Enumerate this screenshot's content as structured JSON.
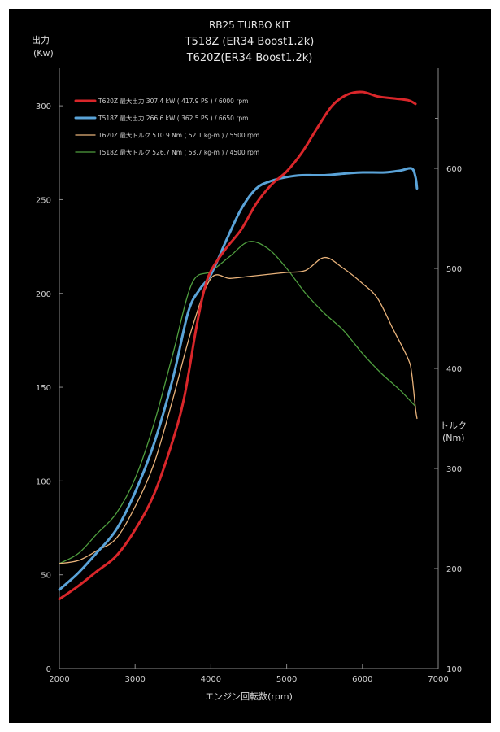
{
  "chart_data": {
    "type": "line",
    "title": [
      "RB25 TURBO KIT",
      "T518Z (ER34 Boost1.2k)",
      "T620Z(ER34 Boost1.2k)"
    ],
    "xlabel": "エンジン回転数(rpm)",
    "ylabel_left": [
      "出力",
      "(Kw)"
    ],
    "ylabel_right": [
      "トルク",
      "(Nm)"
    ],
    "xlim": [
      2000,
      7000
    ],
    "ylim_left": [
      0,
      320
    ],
    "ylim_right": [
      100,
      700
    ],
    "x_ticks": [
      2000,
      3000,
      4000,
      5000,
      6000,
      7000
    ],
    "y_ticks_left": [
      0,
      50,
      100,
      150,
      200,
      250,
      300
    ],
    "y_ticks_right": [
      100,
      200,
      300,
      400,
      500,
      600
    ],
    "grid": false,
    "legend_position": "top-left",
    "series": [
      {
        "name": "T620Z 最大出力 307.4 kW ( 417.9 PS ) / 6000 rpm",
        "axis": "left",
        "color": "#d9262a",
        "width": 3,
        "points": [
          [
            2000,
            37
          ],
          [
            2250,
            44
          ],
          [
            2500,
            52
          ],
          [
            2750,
            60
          ],
          [
            3000,
            74
          ],
          [
            3250,
            93
          ],
          [
            3500,
            122
          ],
          [
            3650,
            145
          ],
          [
            3800,
            180
          ],
          [
            3900,
            200
          ],
          [
            4000,
            212
          ],
          [
            4200,
            224
          ],
          [
            4400,
            234
          ],
          [
            4600,
            248
          ],
          [
            4800,
            258
          ],
          [
            5000,
            265
          ],
          [
            5200,
            275
          ],
          [
            5400,
            288
          ],
          [
            5600,
            300
          ],
          [
            5800,
            306
          ],
          [
            6000,
            307.4
          ],
          [
            6200,
            305
          ],
          [
            6400,
            304
          ],
          [
            6600,
            303
          ],
          [
            6700,
            301
          ]
        ]
      },
      {
        "name": "T518Z 最大出力 266.6 kW ( 362.5 PS ) / 6650 rpm",
        "axis": "left",
        "color": "#5aa3d8",
        "width": 3,
        "points": [
          [
            2000,
            42
          ],
          [
            2250,
            51
          ],
          [
            2500,
            62
          ],
          [
            2750,
            74
          ],
          [
            3000,
            94
          ],
          [
            3250,
            120
          ],
          [
            3500,
            155
          ],
          [
            3700,
            190
          ],
          [
            3850,
            202
          ],
          [
            4000,
            210
          ],
          [
            4200,
            228
          ],
          [
            4400,
            245
          ],
          [
            4600,
            256
          ],
          [
            4800,
            260
          ],
          [
            5000,
            262
          ],
          [
            5200,
            263
          ],
          [
            5500,
            263
          ],
          [
            5800,
            264
          ],
          [
            6000,
            264.5
          ],
          [
            6300,
            264.5
          ],
          [
            6500,
            265.5
          ],
          [
            6650,
            266.6
          ],
          [
            6700,
            262
          ],
          [
            6720,
            256
          ]
        ]
      },
      {
        "name": "T620Z 最大トルク 510.9 Nm ( 52.1 kg-m ) / 5500 rpm",
        "axis": "right",
        "color": "#e8b27a",
        "width": 1.3,
        "points": [
          [
            2000,
            205
          ],
          [
            2250,
            208
          ],
          [
            2500,
            218
          ],
          [
            2750,
            230
          ],
          [
            3000,
            262
          ],
          [
            3250,
            305
          ],
          [
            3500,
            370
          ],
          [
            3750,
            440
          ],
          [
            4000,
            490
          ],
          [
            4250,
            490
          ],
          [
            4500,
            492
          ],
          [
            4750,
            494
          ],
          [
            5000,
            496
          ],
          [
            5250,
            498
          ],
          [
            5500,
            510.9
          ],
          [
            5750,
            500
          ],
          [
            6000,
            485
          ],
          [
            6200,
            470
          ],
          [
            6400,
            440
          ],
          [
            6600,
            410
          ],
          [
            6650,
            395
          ],
          [
            6700,
            360
          ],
          [
            6720,
            350
          ]
        ]
      },
      {
        "name": "T518Z 最大トルク 526.7 Nm ( 53.7 kg-m ) / 4500 rpm",
        "axis": "right",
        "color": "#4f9e3f",
        "width": 1.3,
        "points": [
          [
            2000,
            205
          ],
          [
            2250,
            215
          ],
          [
            2500,
            235
          ],
          [
            2750,
            255
          ],
          [
            3000,
            290
          ],
          [
            3250,
            345
          ],
          [
            3500,
            415
          ],
          [
            3750,
            485
          ],
          [
            4000,
            497
          ],
          [
            4250,
            512
          ],
          [
            4500,
            526.7
          ],
          [
            4750,
            520
          ],
          [
            5000,
            500
          ],
          [
            5250,
            475
          ],
          [
            5500,
            455
          ],
          [
            5750,
            438
          ],
          [
            6000,
            415
          ],
          [
            6250,
            395
          ],
          [
            6500,
            378
          ],
          [
            6700,
            362
          ]
        ]
      }
    ]
  }
}
